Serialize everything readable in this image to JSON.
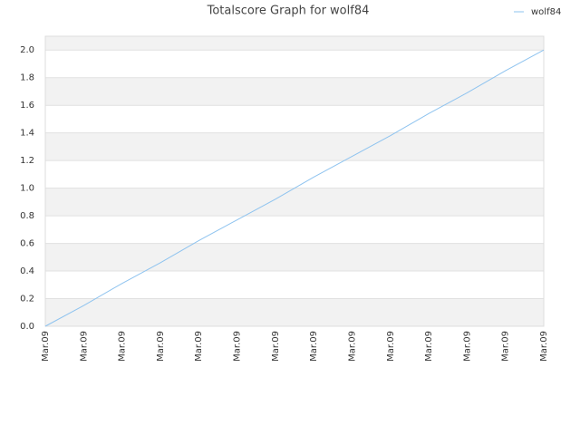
{
  "chart_data": {
    "type": "line",
    "title": "Totalscore Graph for wolf84",
    "categories": [
      "Mar.09",
      "Mar.09",
      "Mar.09",
      "Mar.09",
      "Mar.09",
      "Mar.09",
      "Mar.09",
      "Mar.09",
      "Mar.09",
      "Mar.09",
      "Mar.09",
      "Mar.09",
      "Mar.09",
      "Mar.09"
    ],
    "series": [
      {
        "name": "wolf84",
        "color": "#8ec3ef",
        "values": [
          0,
          0.15,
          0.31,
          0.46,
          0.62,
          0.77,
          0.92,
          1.08,
          1.23,
          1.38,
          1.54,
          1.69,
          1.85,
          2.0
        ]
      }
    ],
    "ylim": [
      0,
      2.1
    ],
    "yticks": [
      {
        "value": 0,
        "label": "0.0"
      },
      0.2,
      0.4,
      0.6,
      0.8,
      {
        "value": 1,
        "label": "1.0"
      },
      1.2,
      1.4,
      1.6,
      1.8,
      {
        "value": 2,
        "label": "2.0"
      }
    ],
    "grid": true,
    "legend": "top-right"
  }
}
